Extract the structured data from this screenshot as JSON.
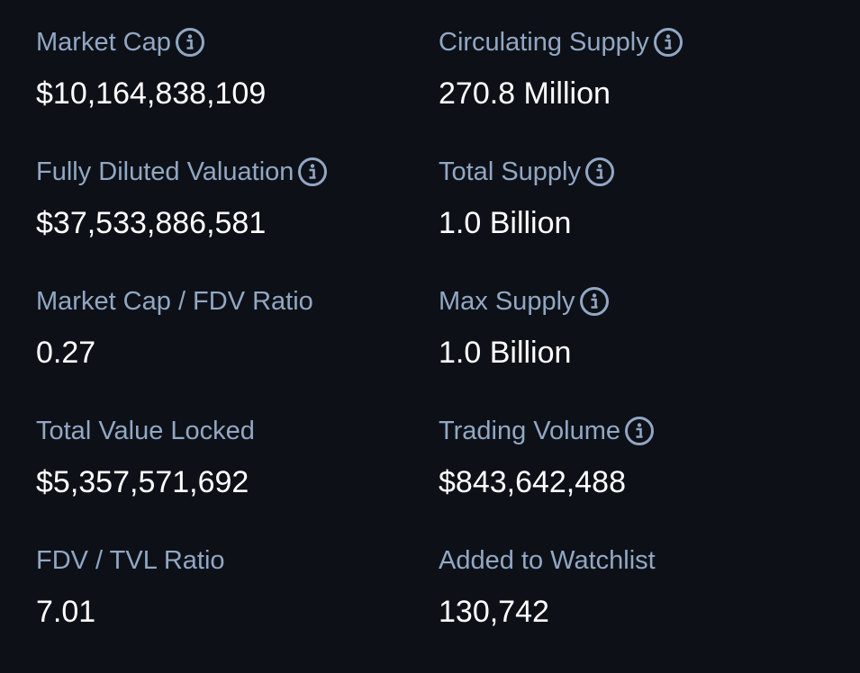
{
  "stats": [
    {
      "label": "Market Cap",
      "value": "$10,164,838,109",
      "info": true
    },
    {
      "label": "Circulating Supply",
      "value": "270.8 Million",
      "info": true
    },
    {
      "label": "Fully Diluted Valuation",
      "value": "$37,533,886,581",
      "info": true
    },
    {
      "label": "Total Supply",
      "value": "1.0 Billion",
      "info": true
    },
    {
      "label": "Market Cap / FDV Ratio",
      "value": "0.27",
      "info": false
    },
    {
      "label": "Max Supply",
      "value": "1.0 Billion",
      "info": true
    },
    {
      "label": "Total Value Locked",
      "value": "$5,357,571,692",
      "info": false
    },
    {
      "label": "Trading Volume",
      "value": "$843,642,488",
      "info": true
    },
    {
      "label": "FDV / TVL Ratio",
      "value": "7.01",
      "info": false
    },
    {
      "label": "Added to Watchlist",
      "value": "130,742",
      "info": false
    }
  ],
  "icons": {
    "info": "info-circle-icon"
  },
  "colors": {
    "background": "#0d1117",
    "label": "#92a7c4",
    "value": "#ffffff"
  }
}
